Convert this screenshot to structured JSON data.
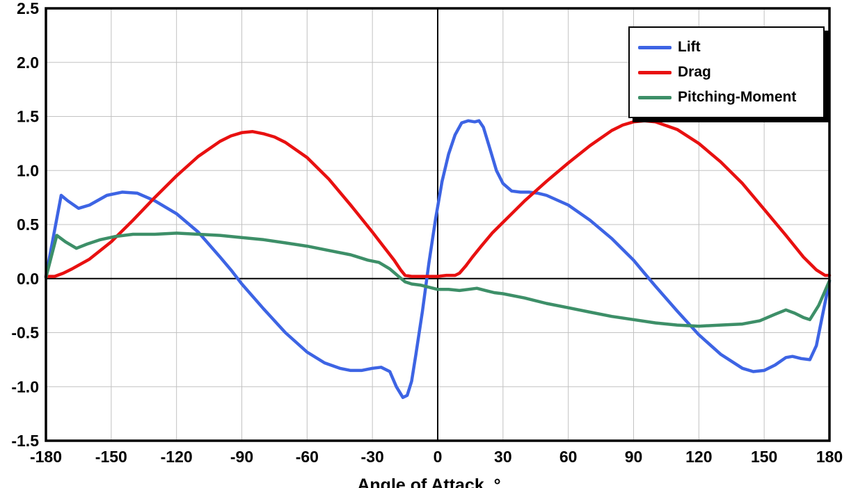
{
  "chart_data": {
    "type": "line",
    "title": "",
    "xlabel": "Angle of Attack, °",
    "ylabel": "",
    "xlim": [
      -180,
      180
    ],
    "ylim": [
      -1.5,
      2.5
    ],
    "x_ticks": [
      -180,
      -150,
      -120,
      -90,
      -60,
      -30,
      0,
      30,
      60,
      90,
      120,
      150,
      180
    ],
    "y_ticks": [
      2.5,
      2.0,
      1.5,
      1.0,
      0.5,
      0.0,
      -0.5,
      -1.0,
      -1.5
    ],
    "grid": true,
    "legend_position": "top-right",
    "colors": {
      "grid": "#c2c2c2",
      "axis": "#000000",
      "border": "#000000"
    },
    "series": [
      {
        "name": "Lift",
        "color": "#3d64e4",
        "points": [
          [
            -180,
            0.02
          ],
          [
            -173,
            0.77
          ],
          [
            -170,
            0.72
          ],
          [
            -165,
            0.65
          ],
          [
            -160,
            0.68
          ],
          [
            -152,
            0.77
          ],
          [
            -145,
            0.8
          ],
          [
            -138,
            0.79
          ],
          [
            -130,
            0.72
          ],
          [
            -120,
            0.6
          ],
          [
            -110,
            0.43
          ],
          [
            -100,
            0.2
          ],
          [
            -95,
            0.08
          ],
          [
            -90,
            -0.05
          ],
          [
            -80,
            -0.28
          ],
          [
            -70,
            -0.5
          ],
          [
            -60,
            -0.68
          ],
          [
            -52,
            -0.78
          ],
          [
            -45,
            -0.83
          ],
          [
            -40,
            -0.85
          ],
          [
            -35,
            -0.85
          ],
          [
            -30,
            -0.83
          ],
          [
            -26,
            -0.82
          ],
          [
            -22,
            -0.86
          ],
          [
            -19,
            -1.0
          ],
          [
            -16,
            -1.1
          ],
          [
            -14,
            -1.08
          ],
          [
            -12,
            -0.95
          ],
          [
            -10,
            -0.7
          ],
          [
            -7,
            -0.3
          ],
          [
            -4,
            0.15
          ],
          [
            -1,
            0.55
          ],
          [
            2,
            0.9
          ],
          [
            5,
            1.15
          ],
          [
            8,
            1.33
          ],
          [
            11,
            1.44
          ],
          [
            14,
            1.46
          ],
          [
            17,
            1.45
          ],
          [
            19,
            1.46
          ],
          [
            21,
            1.4
          ],
          [
            24,
            1.2
          ],
          [
            27,
            1.0
          ],
          [
            30,
            0.88
          ],
          [
            34,
            0.81
          ],
          [
            38,
            0.8
          ],
          [
            42,
            0.8
          ],
          [
            46,
            0.79
          ],
          [
            50,
            0.77
          ],
          [
            60,
            0.68
          ],
          [
            70,
            0.54
          ],
          [
            80,
            0.37
          ],
          [
            90,
            0.17
          ],
          [
            95,
            0.05
          ],
          [
            100,
            -0.07
          ],
          [
            110,
            -0.3
          ],
          [
            120,
            -0.52
          ],
          [
            130,
            -0.7
          ],
          [
            140,
            -0.83
          ],
          [
            145,
            -0.86
          ],
          [
            150,
            -0.85
          ],
          [
            155,
            -0.8
          ],
          [
            160,
            -0.73
          ],
          [
            163,
            -0.72
          ],
          [
            167,
            -0.74
          ],
          [
            171,
            -0.75
          ],
          [
            174,
            -0.62
          ],
          [
            177,
            -0.32
          ],
          [
            180,
            -0.02
          ]
        ]
      },
      {
        "name": "Drag",
        "color": "#e81010",
        "points": [
          [
            -180,
            0.02
          ],
          [
            -176,
            0.02
          ],
          [
            -172,
            0.05
          ],
          [
            -168,
            0.09
          ],
          [
            -160,
            0.18
          ],
          [
            -150,
            0.34
          ],
          [
            -140,
            0.54
          ],
          [
            -130,
            0.75
          ],
          [
            -120,
            0.95
          ],
          [
            -110,
            1.13
          ],
          [
            -100,
            1.27
          ],
          [
            -95,
            1.32
          ],
          [
            -90,
            1.35
          ],
          [
            -85,
            1.36
          ],
          [
            -80,
            1.34
          ],
          [
            -75,
            1.31
          ],
          [
            -70,
            1.26
          ],
          [
            -60,
            1.12
          ],
          [
            -50,
            0.92
          ],
          [
            -40,
            0.68
          ],
          [
            -30,
            0.43
          ],
          [
            -25,
            0.3
          ],
          [
            -20,
            0.17
          ],
          [
            -17,
            0.08
          ],
          [
            -15,
            0.03
          ],
          [
            -12,
            0.02
          ],
          [
            -8,
            0.02
          ],
          [
            -4,
            0.02
          ],
          [
            0,
            0.02
          ],
          [
            4,
            0.03
          ],
          [
            8,
            0.03
          ],
          [
            10,
            0.05
          ],
          [
            13,
            0.12
          ],
          [
            16,
            0.2
          ],
          [
            20,
            0.3
          ],
          [
            25,
            0.42
          ],
          [
            30,
            0.52
          ],
          [
            35,
            0.62
          ],
          [
            40,
            0.72
          ],
          [
            50,
            0.9
          ],
          [
            60,
            1.07
          ],
          [
            70,
            1.23
          ],
          [
            80,
            1.37
          ],
          [
            85,
            1.42
          ],
          [
            90,
            1.45
          ],
          [
            95,
            1.46
          ],
          [
            100,
            1.45
          ],
          [
            110,
            1.38
          ],
          [
            120,
            1.25
          ],
          [
            130,
            1.08
          ],
          [
            140,
            0.88
          ],
          [
            150,
            0.64
          ],
          [
            160,
            0.4
          ],
          [
            168,
            0.2
          ],
          [
            174,
            0.08
          ],
          [
            178,
            0.03
          ],
          [
            180,
            0.03
          ]
        ]
      },
      {
        "name": "Pitching-Moment",
        "color": "#3d8f68",
        "points": [
          [
            -180,
            0.01
          ],
          [
            -175,
            0.4
          ],
          [
            -171,
            0.34
          ],
          [
            -166,
            0.28
          ],
          [
            -161,
            0.32
          ],
          [
            -155,
            0.36
          ],
          [
            -148,
            0.39
          ],
          [
            -140,
            0.41
          ],
          [
            -130,
            0.41
          ],
          [
            -120,
            0.42
          ],
          [
            -110,
            0.41
          ],
          [
            -100,
            0.4
          ],
          [
            -90,
            0.38
          ],
          [
            -80,
            0.36
          ],
          [
            -70,
            0.33
          ],
          [
            -60,
            0.3
          ],
          [
            -50,
            0.26
          ],
          [
            -40,
            0.22
          ],
          [
            -32,
            0.17
          ],
          [
            -27,
            0.15
          ],
          [
            -22,
            0.09
          ],
          [
            -18,
            0.02
          ],
          [
            -15,
            -0.03
          ],
          [
            -12,
            -0.05
          ],
          [
            -8,
            -0.06
          ],
          [
            -4,
            -0.08
          ],
          [
            0,
            -0.1
          ],
          [
            5,
            -0.1
          ],
          [
            10,
            -0.11
          ],
          [
            14,
            -0.1
          ],
          [
            18,
            -0.09
          ],
          [
            22,
            -0.11
          ],
          [
            26,
            -0.13
          ],
          [
            30,
            -0.14
          ],
          [
            40,
            -0.18
          ],
          [
            50,
            -0.23
          ],
          [
            60,
            -0.27
          ],
          [
            70,
            -0.31
          ],
          [
            80,
            -0.35
          ],
          [
            90,
            -0.38
          ],
          [
            100,
            -0.41
          ],
          [
            110,
            -0.43
          ],
          [
            120,
            -0.44
          ],
          [
            130,
            -0.43
          ],
          [
            140,
            -0.42
          ],
          [
            148,
            -0.39
          ],
          [
            155,
            -0.33
          ],
          [
            160,
            -0.29
          ],
          [
            164,
            -0.32
          ],
          [
            168,
            -0.36
          ],
          [
            171,
            -0.38
          ],
          [
            175,
            -0.25
          ],
          [
            180,
            -0.02
          ]
        ]
      }
    ]
  }
}
